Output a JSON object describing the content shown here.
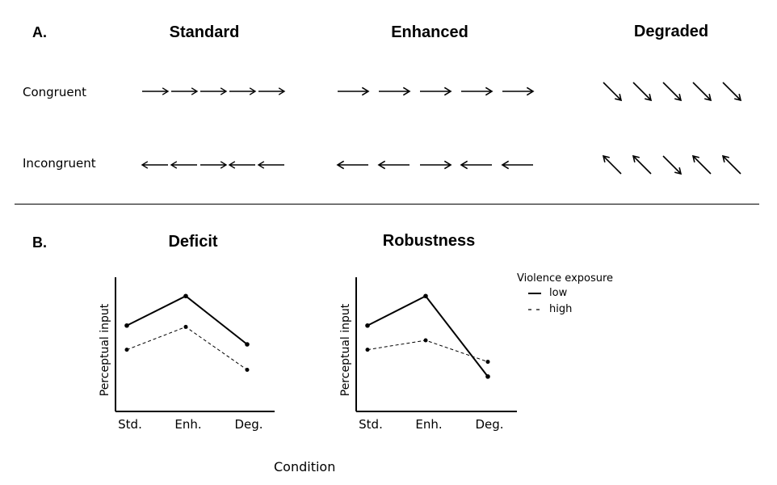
{
  "panel_a": {
    "label": "A.",
    "columns": [
      "Standard",
      "Enhanced",
      "Degraded"
    ],
    "rows": [
      "Congruent",
      "Incongruent"
    ],
    "stimuli": {
      "standard": {
        "congruent": [
          "right",
          "right",
          "right",
          "right",
          "right"
        ],
        "incongruent": [
          "left",
          "left",
          "right",
          "left",
          "left"
        ]
      },
      "enhanced": {
        "congruent": [
          "right",
          "right",
          "right",
          "right",
          "right"
        ],
        "incongruent": [
          "left",
          "left",
          "right",
          "left",
          "left"
        ]
      },
      "degraded": {
        "congruent": [
          "down-right",
          "down-right",
          "down-right",
          "down-right",
          "down-right"
        ],
        "incongruent": [
          "up-left",
          "up-left",
          "down-right",
          "up-left",
          "up-left"
        ]
      }
    }
  },
  "panel_b": {
    "label": "B.",
    "x_common_label": "Condition",
    "legend": {
      "title": "Violence exposure",
      "items": [
        {
          "label": "low",
          "style": "solid"
        },
        {
          "label": "high",
          "style": "dashed"
        }
      ]
    }
  },
  "chart_data": [
    {
      "type": "line",
      "title": "Deficit",
      "categories": [
        "Std.",
        "Enh.",
        "Deg."
      ],
      "ylabel": "Perceptual input",
      "xlabel": "",
      "ylim": [
        0,
        10
      ],
      "series": [
        {
          "name": "low",
          "style": "solid",
          "values": [
            6.4,
            8.6,
            5.0
          ]
        },
        {
          "name": "high",
          "style": "dashed",
          "values": [
            4.6,
            6.3,
            3.1
          ]
        }
      ]
    },
    {
      "type": "line",
      "title": "Robustness",
      "categories": [
        "Std.",
        "Enh.",
        "Deg."
      ],
      "ylabel": "Perceptual input",
      "xlabel": "",
      "ylim": [
        0,
        10
      ],
      "series": [
        {
          "name": "low",
          "style": "solid",
          "values": [
            6.4,
            8.6,
            2.6
          ]
        },
        {
          "name": "high",
          "style": "dashed",
          "values": [
            4.6,
            5.3,
            3.7
          ]
        }
      ]
    }
  ]
}
